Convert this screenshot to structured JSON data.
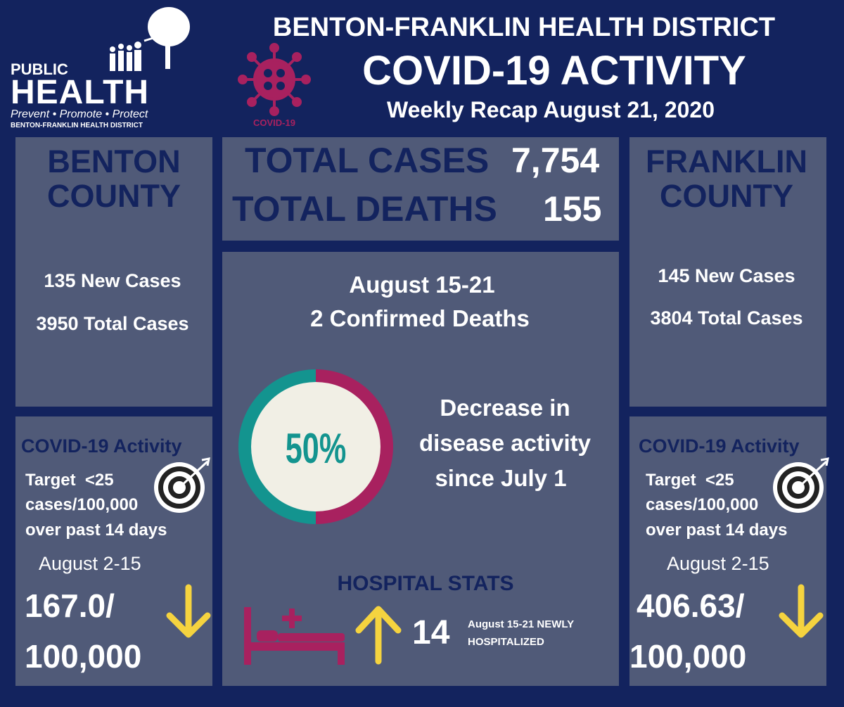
{
  "logo": {
    "line1": "PUBLIC",
    "line2": "HEALTH",
    "tagline": "Prevent • Promote • Protect",
    "org": "BENTON-FRANKLIN HEALTH DISTRICT",
    "virus_label": "COVID-19"
  },
  "header": {
    "org": "BENTON-FRANKLIN HEALTH DISTRICT",
    "title": "COVID-19 ACTIVITY",
    "subtitle": "Weekly Recap August 21, 2020"
  },
  "totals": {
    "cases_label": "TOTAL CASES",
    "cases": "7,754",
    "deaths_label": "TOTAL DEATHS",
    "deaths": "155"
  },
  "benton": {
    "name_line1": "BENTON",
    "name_line2": "COUNTY",
    "new_cases": "135 New Cases",
    "total_cases": "3950 Total Cases",
    "activity_title": "COVID-19 Activity",
    "target_line1": "Target  <25",
    "target_line2": "cases/100,000",
    "target_line3": "over past 14 days",
    "period": "August 2-15",
    "rate_line1": "167.0/",
    "rate_line2": "100,000"
  },
  "franklin": {
    "name_line1": "FRANKLIN",
    "name_line2": "COUNTY",
    "new_cases": "145 New Cases",
    "total_cases": "3804 Total Cases",
    "activity_title": "COVID-19 Activity",
    "target_line1": "Target  <25",
    "target_line2": "cases/100,000",
    "target_line3": "over past 14 days",
    "period": "August 2-15",
    "rate_line1": "406.63/",
    "rate_line2": "100,000"
  },
  "center": {
    "period": "August 15-21",
    "deaths": "2 Confirmed Deaths",
    "percent": "50%",
    "decrease_line1": "Decrease in",
    "decrease_line2": "disease activity",
    "decrease_line3": "since July 1",
    "hospital_title": "HOSPITAL STATS",
    "hospitalized": "14",
    "hosp_note_line1": "August 15-21 NEWLY",
    "hosp_note_line2": "HOSPITALIZED"
  }
}
